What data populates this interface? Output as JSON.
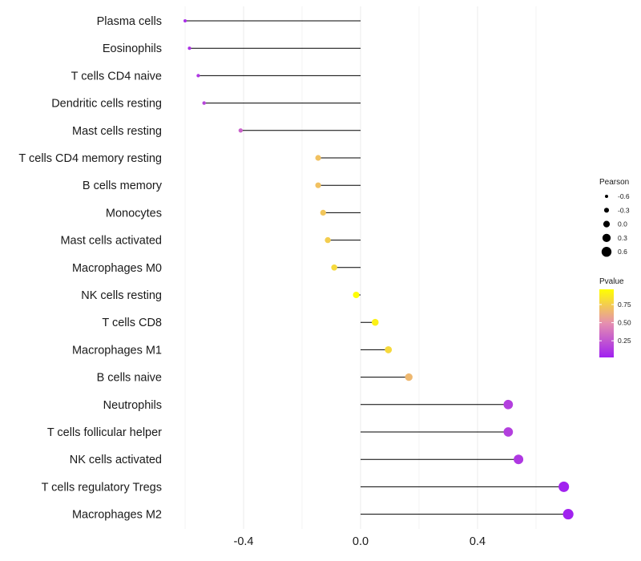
{
  "chart_data": {
    "type": "lollipop",
    "title": "",
    "xlabel": "",
    "ylabel": "",
    "xlim": [
      -0.6,
      0.73
    ],
    "xticks": [
      -0.4,
      0.0,
      0.4
    ],
    "xtick_labels": [
      "-0.4",
      "0.0",
      "0.4"
    ],
    "grid": true,
    "categories": [
      "Plasma cells",
      "Eosinophils",
      "T cells CD4 naive",
      "Dendritic cells resting",
      "Mast cells resting",
      "T cells CD4 memory resting",
      "B cells memory",
      "Monocytes",
      "Mast cells activated",
      "Macrophages M0",
      "NK cells resting",
      "T cells CD8",
      "Macrophages M1",
      "B cells naive",
      "Neutrophils",
      "T cells follicular helper",
      "NK cells activated",
      "T cells regulatory  Tregs",
      "Macrophages M2"
    ],
    "values": [
      -0.6,
      -0.585,
      -0.555,
      -0.535,
      -0.41,
      -0.145,
      -0.145,
      -0.128,
      -0.112,
      -0.09,
      -0.015,
      0.05,
      0.095,
      0.165,
      0.505,
      0.505,
      0.54,
      0.695,
      0.71
    ],
    "pvalues": [
      0.08,
      0.1,
      0.12,
      0.18,
      0.3,
      0.7,
      0.7,
      0.72,
      0.75,
      0.8,
      0.95,
      0.9,
      0.8,
      0.66,
      0.15,
      0.15,
      0.12,
      0.03,
      0.03
    ],
    "legend": {
      "size_title": "Pearson",
      "size_labels": [
        "-0.6",
        "-0.3",
        "0.0",
        "0.3",
        "0.6"
      ],
      "size_values": [
        -0.6,
        -0.3,
        0.0,
        0.3,
        0.6
      ],
      "color_title": "Pvalue",
      "color_labels": [
        "0.75",
        "0.50",
        "0.25"
      ],
      "color_values": [
        0.75,
        0.5,
        0.25
      ],
      "color_range": [
        0.02,
        0.96
      ],
      "color_low": "#a020f0",
      "color_mid": "#e58fb0",
      "color_high": "#ffff00"
    }
  }
}
